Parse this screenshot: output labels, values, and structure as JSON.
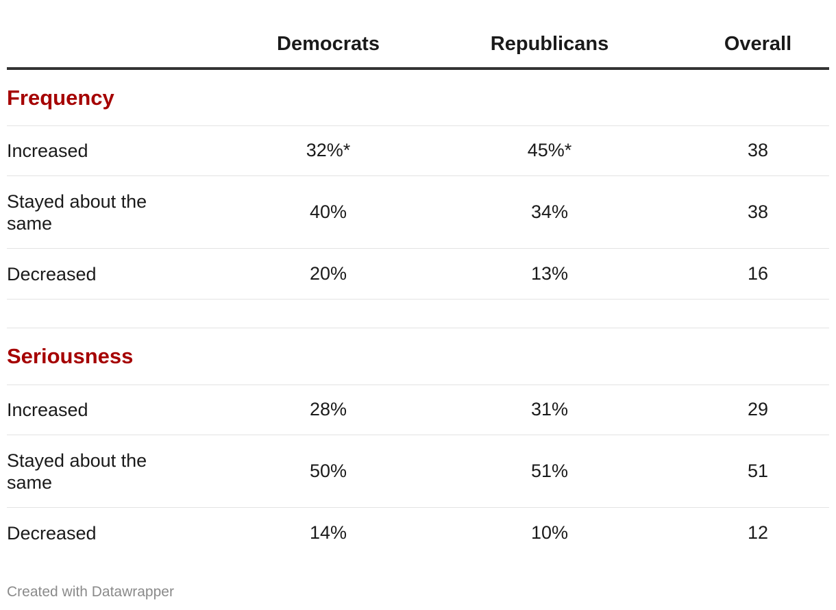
{
  "chart_data": {
    "type": "table",
    "columns": [
      "",
      "Democrats",
      "Republicans",
      "Overall"
    ],
    "sections": [
      {
        "title": "Frequency",
        "rows": [
          {
            "label": "Increased",
            "values": [
              "32%*",
              "45%*",
              "38"
            ]
          },
          {
            "label": "Stayed about the same",
            "values": [
              "40%",
              "34%",
              "38"
            ]
          },
          {
            "label": "Decreased",
            "values": [
              "20%",
              "13%",
              "16"
            ]
          }
        ]
      },
      {
        "title": "Seriousness",
        "rows": [
          {
            "label": "Increased",
            "values": [
              "28%",
              "31%",
              "29"
            ]
          },
          {
            "label": "Stayed about the same",
            "values": [
              "50%",
              "51%",
              "51"
            ]
          },
          {
            "label": "Decreased",
            "values": [
              "14%",
              "10%",
              "12"
            ]
          }
        ]
      }
    ]
  },
  "colors": {
    "section_title": "#a50000",
    "text": "#1a1a1a",
    "footer": "#8a8a8a"
  },
  "footer": "Created with Datawrapper"
}
